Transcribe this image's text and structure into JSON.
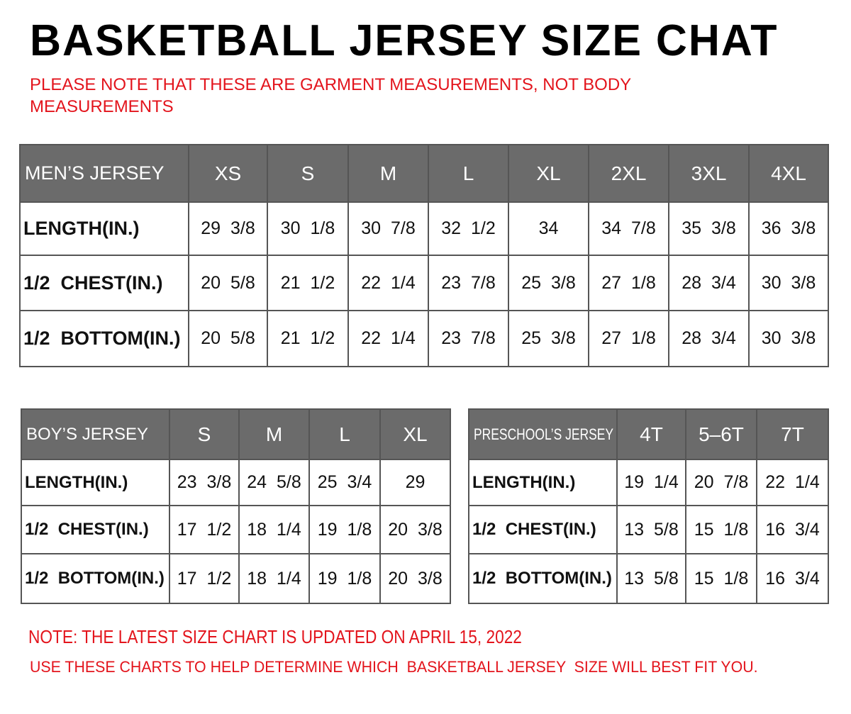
{
  "title": "BASKETBALL JERSEY SIZE CHAT",
  "notice": "PLEASE NOTE THAT THESE ARE GARMENT MEASUREMENTS, NOT BODY MEASUREMENTS",
  "colors": {
    "header_bg": "#6b6b6b",
    "note_red": "#e3141c"
  },
  "men": {
    "label": "MEN’S JERSEY",
    "sizes": [
      "XS",
      "S",
      "M",
      "L",
      "XL",
      "2XL",
      "3XL",
      "4XL"
    ],
    "rows": [
      {
        "label": "LENGTH(IN.)",
        "values": [
          "29  3/8",
          "30  1/8",
          "30  7/8",
          "32  1/2",
          "34",
          "34  7/8",
          "35  3/8",
          "36  3/8"
        ]
      },
      {
        "label": "1/2  CHEST(IN.)",
        "values": [
          "20  5/8",
          "21  1/2",
          "22  1/4",
          "23  7/8",
          "25  3/8",
          "27  1/8",
          "28  3/4",
          "30  3/8"
        ]
      },
      {
        "label": "1/2  BOTTOM(IN.)",
        "values": [
          "20  5/8",
          "21  1/2",
          "22  1/4",
          "23  7/8",
          "25  3/8",
          "27  1/8",
          "28  3/4",
          "30  3/8"
        ]
      }
    ]
  },
  "boy": {
    "label": "BOY’S JERSEY",
    "sizes": [
      "S",
      "M",
      "L",
      "XL"
    ],
    "rows": [
      {
        "label": "LENGTH(IN.)",
        "values": [
          "23  3/8",
          "24  5/8",
          "25  3/4",
          "29"
        ]
      },
      {
        "label": "1/2  CHEST(IN.)",
        "values": [
          "17  1/2",
          "18  1/4",
          "19  1/8",
          "20  3/8"
        ]
      },
      {
        "label": "1/2  BOTTOM(IN.)",
        "values": [
          "17  1/2",
          "18  1/4",
          "19  1/8",
          "20  3/8"
        ]
      }
    ]
  },
  "preschool": {
    "label": "PRESCHOOL’S JERSEY",
    "sizes": [
      "4T",
      "5–6T",
      "7T"
    ],
    "rows": [
      {
        "label": "LENGTH(IN.)",
        "values": [
          "19  1/4",
          "20  7/8",
          "22  1/4"
        ]
      },
      {
        "label": "1/2  CHEST(IN.)",
        "values": [
          "13  5/8",
          "15  1/8",
          "16  3/4"
        ]
      },
      {
        "label": "1/2  BOTTOM(IN.)",
        "values": [
          "13  5/8",
          "15  1/8",
          "16  3/4"
        ]
      }
    ]
  },
  "footer": {
    "update_note": "NOTE: THE LATEST SIZE CHART IS UPDATED ON APRIL 15, 2022",
    "usage_note": "USE THESE CHARTS TO HELP DETERMINE WHICH  BASKETBALL JERSEY  SIZE WILL BEST FIT YOU."
  }
}
